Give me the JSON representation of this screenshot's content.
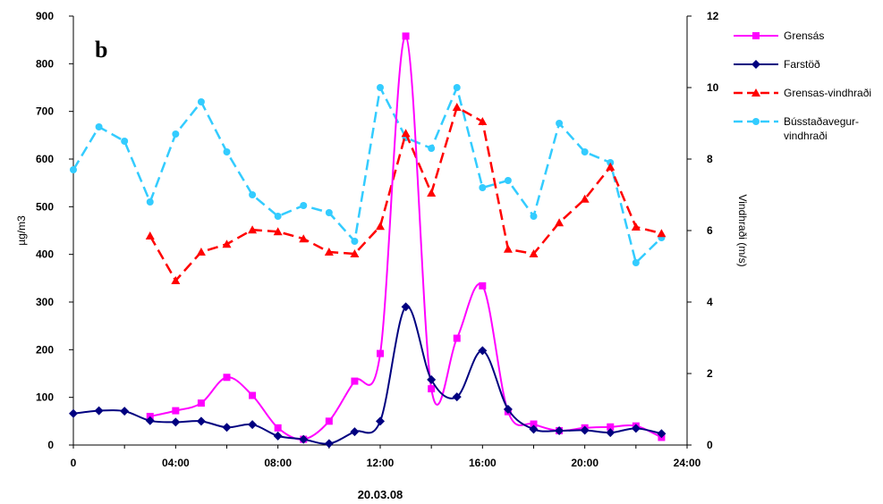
{
  "chart_data": {
    "type": "line",
    "panel_label": "b",
    "date_label": "20.03.08",
    "ylabel_left": "µg/m3",
    "ylabel_right": "Vindhraði (m/s)",
    "x_ticks": [
      "0",
      "04:00",
      "08:00",
      "12:00",
      "16:00",
      "20:00",
      "24:00"
    ],
    "xlim": [
      0,
      24
    ],
    "ylim_left": [
      0,
      900
    ],
    "ylim_right": [
      0,
      12
    ],
    "y_ticks_left": [
      0,
      100,
      200,
      300,
      400,
      500,
      600,
      700,
      800,
      900
    ],
    "y_ticks_right": [
      0,
      2,
      4,
      6,
      8,
      10,
      12
    ],
    "series": [
      {
        "name": "Grensás",
        "axis": "left",
        "color": "#ff00ff",
        "dash": "solid",
        "marker": "square",
        "smooth": true,
        "x": [
          3,
          4,
          5,
          6,
          7,
          8,
          9,
          10,
          11,
          12,
          13,
          14,
          15,
          16,
          17,
          18,
          19,
          20,
          21,
          22,
          23
        ],
        "y": [
          60,
          72,
          88,
          142,
          104,
          36,
          12,
          50,
          134,
          192,
          858,
          118,
          224,
          334,
          70,
          44,
          30,
          36,
          38,
          40,
          16
        ]
      },
      {
        "name": "Farstöð",
        "axis": "left",
        "color": "#000080",
        "dash": "solid",
        "marker": "diamond",
        "smooth": true,
        "x": [
          0,
          1,
          2,
          3,
          4,
          5,
          6,
          7,
          8,
          9,
          10,
          11,
          12,
          13,
          14,
          15,
          16,
          17,
          18,
          19,
          20,
          21,
          22,
          23
        ],
        "y": [
          66,
          72,
          71,
          51,
          48,
          50,
          37,
          43,
          19,
          12,
          3,
          28,
          50,
          290,
          137,
          101,
          198,
          75,
          33,
          30,
          31,
          26,
          35,
          24
        ]
      },
      {
        "name": "Grensas-vindhraði",
        "axis": "right",
        "color": "#ff0000",
        "dash": "dashed",
        "marker": "triangle",
        "smooth": false,
        "x": [
          3,
          4,
          5,
          6,
          7,
          8,
          9,
          10,
          11,
          12,
          13,
          14,
          15,
          16,
          17,
          18,
          19,
          20,
          21,
          22,
          23
        ],
        "y": [
          5.85,
          4.6,
          5.4,
          5.62,
          6.02,
          5.97,
          5.77,
          5.4,
          5.35,
          6.12,
          8.72,
          7.05,
          9.45,
          9.05,
          5.48,
          5.35,
          6.22,
          6.88,
          7.78,
          6.1,
          5.92
        ]
      },
      {
        "name": "Bússtaðavegur-vindhraði",
        "legend_lines": [
          "Bússtaðavegur-",
          "vindhraði"
        ],
        "axis": "right",
        "color": "#33ccff",
        "dash": "dashed",
        "marker": "circle",
        "smooth": false,
        "x": [
          0,
          1,
          2,
          3,
          4,
          5,
          6,
          7,
          8,
          9,
          10,
          11,
          12,
          13,
          14,
          15,
          16,
          17,
          18,
          19,
          20,
          21,
          22,
          23
        ],
        "y": [
          7.7,
          8.9,
          8.5,
          6.8,
          8.7,
          9.6,
          8.2,
          7.0,
          6.4,
          6.7,
          6.5,
          5.7,
          10.0,
          8.6,
          8.3,
          10.0,
          7.2,
          7.4,
          6.4,
          9.0,
          8.2,
          7.9,
          5.1,
          5.8
        ]
      }
    ]
  }
}
